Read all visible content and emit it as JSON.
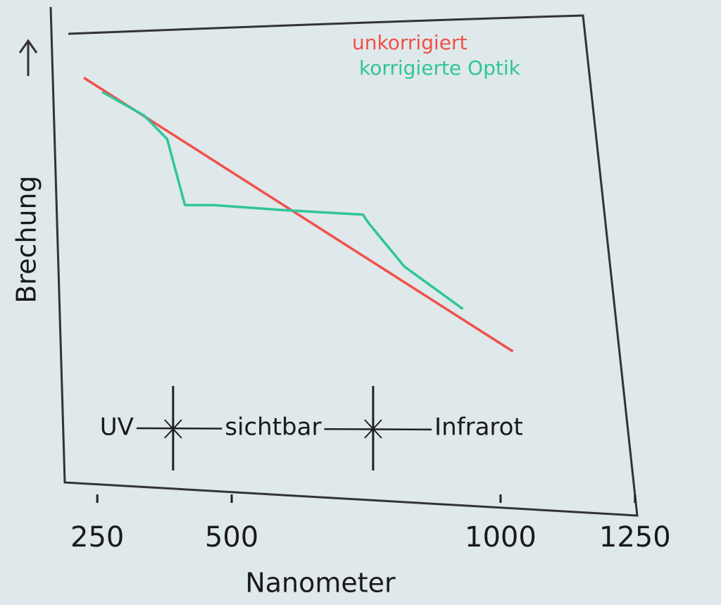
{
  "chart_data": {
    "type": "line",
    "x_label": "Nanometer",
    "y_label": "Brechung",
    "xlim": [
      200,
      1300
    ],
    "xticks": [
      250,
      500,
      1000,
      1250
    ],
    "ylim": [
      0,
      100
    ],
    "series": [
      {
        "name": "unkorrigiert",
        "color": "#f0504a",
        "x": [
          225,
          1023
        ],
        "values": [
          88,
          30
        ]
      },
      {
        "name": "korrigierte Optik",
        "color": "#2fc59a",
        "x": [
          259,
          337,
          380,
          413,
          467,
          590,
          744,
          756,
          821,
          930
        ],
        "values": [
          85,
          80,
          75,
          61,
          61,
          60,
          59,
          57,
          48,
          39
        ]
      }
    ],
    "regions": {
      "labels": [
        "UV",
        "sichtbar",
        "Infrarot"
      ],
      "boundaries": [
        391,
        763
      ]
    }
  }
}
